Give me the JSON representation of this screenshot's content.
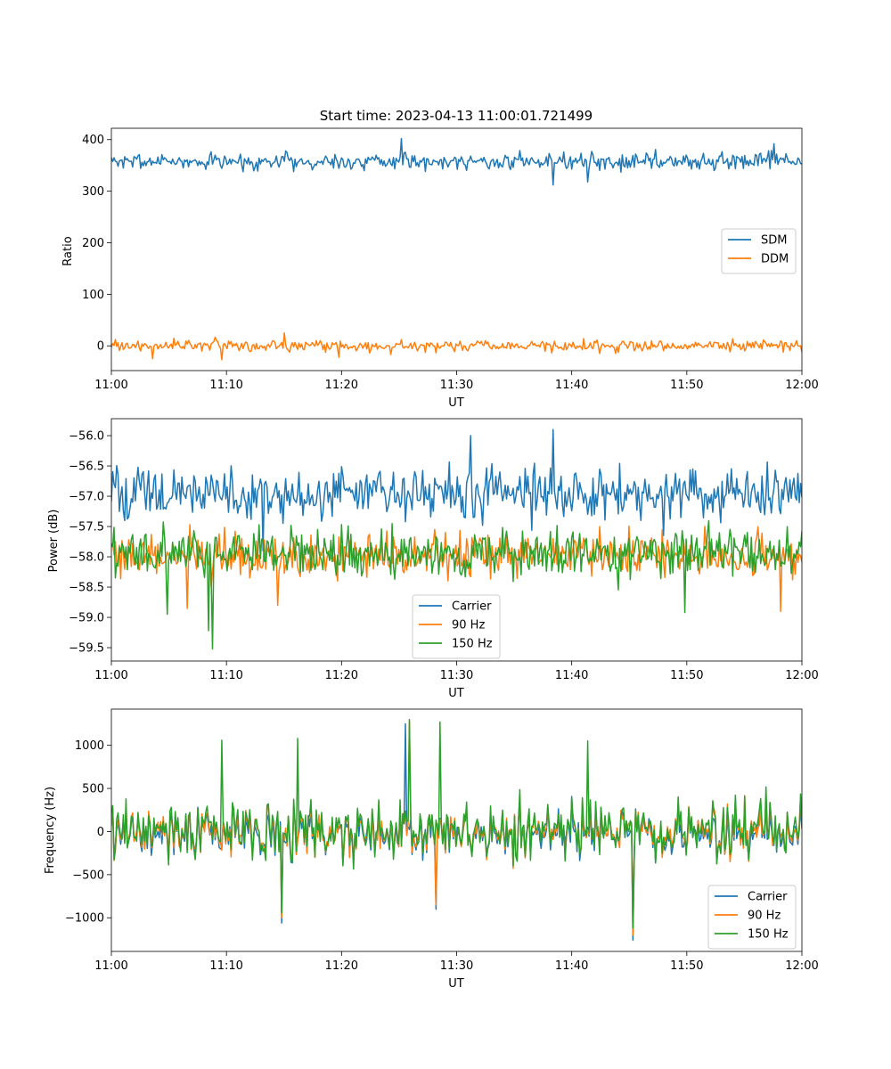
{
  "chart_data": [
    {
      "type": "line",
      "title": "Start time: 2023-04-13 11:00:01.721499",
      "xlabel": "UT",
      "ylabel": "Ratio",
      "x_ticks": [
        "11:00",
        "11:10",
        "11:20",
        "11:30",
        "11:40",
        "11:50",
        "12:00"
      ],
      "xlim": [
        "11:00",
        "12:00"
      ],
      "y_ticks": [
        0,
        100,
        200,
        300,
        400
      ],
      "ylim": [
        -48,
        422
      ],
      "legend_position": "center-right",
      "series": [
        {
          "name": "SDM",
          "color": "#1f77b4",
          "mean": 358,
          "spread": 14,
          "spikes": [
            [
              0.42,
              402
            ],
            [
              0.96,
              392
            ],
            [
              0.64,
              312
            ],
            [
              0.69,
              318
            ]
          ]
        },
        {
          "name": "DDM",
          "color": "#ff7f0e",
          "mean": 0,
          "spread": 9,
          "spikes": [
            [
              0.06,
              -25
            ],
            [
              0.16,
              -27
            ],
            [
              0.25,
              25
            ],
            [
              0.33,
              -22
            ]
          ]
        }
      ]
    },
    {
      "type": "line",
      "title": "",
      "xlabel": "UT",
      "ylabel": "Power (dB)",
      "x_ticks": [
        "11:00",
        "11:10",
        "11:20",
        "11:30",
        "11:40",
        "11:50",
        "12:00"
      ],
      "xlim": [
        "11:00",
        "12:00"
      ],
      "y_ticks": [
        -56.0,
        -56.5,
        -57.0,
        -57.5,
        -58.0,
        -58.5,
        -59.0,
        -59.5
      ],
      "ylim": [
        -59.72,
        -55.72
      ],
      "legend_position": "lower-center",
      "series": [
        {
          "name": "Carrier",
          "color": "#1f77b4",
          "mean": -56.95,
          "spread": 0.35,
          "spikes": [
            [
              0.64,
              -55.9
            ],
            [
              0.52,
              -56.0
            ],
            [
              0.22,
              -57.9
            ],
            [
              0.8,
              -57.65
            ]
          ]
        },
        {
          "name": "90 Hz",
          "color": "#ff7f0e",
          "mean": -57.98,
          "spread": 0.3,
          "spikes": [
            [
              0.11,
              -58.85
            ],
            [
              0.24,
              -58.8
            ],
            [
              0.86,
              -57.5
            ],
            [
              0.97,
              -58.9
            ]
          ]
        },
        {
          "name": "150 Hz",
          "color": "#2ca02c",
          "mean": -57.95,
          "spread": 0.33,
          "spikes": [
            [
              0.146,
              -59.52
            ],
            [
              0.14,
              -59.22
            ],
            [
              0.08,
              -58.95
            ],
            [
              0.83,
              -58.92
            ]
          ]
        }
      ]
    },
    {
      "type": "line",
      "title": "",
      "xlabel": "UT",
      "ylabel": "Frequency (Hz)",
      "x_ticks": [
        "11:00",
        "11:10",
        "11:20",
        "11:30",
        "11:40",
        "11:50",
        "12:00"
      ],
      "xlim": [
        "11:00",
        "12:00"
      ],
      "y_ticks": [
        1000,
        500,
        0,
        -500,
        -1000
      ],
      "ylim": [
        -1390,
        1420
      ],
      "legend_position": "lower-right",
      "series": [
        {
          "name": "Carrier",
          "color": "#1f77b4",
          "mean": -20,
          "spread": 280,
          "spikes": [
            [
              0.246,
              -1060
            ],
            [
              0.756,
              -1260
            ],
            [
              0.47,
              -900
            ],
            [
              0.425,
              1250
            ]
          ]
        },
        {
          "name": "90 Hz",
          "color": "#ff7f0e",
          "mean": 0,
          "spread": 280,
          "spikes": [
            [
              0.246,
              -1000
            ],
            [
              0.756,
              -1200
            ],
            [
              0.47,
              -850
            ],
            [
              0.432,
              1280
            ]
          ]
        },
        {
          "name": "150 Hz",
          "color": "#2ca02c",
          "mean": 20,
          "spread": 300,
          "spikes": [
            [
              0.432,
              1300
            ],
            [
              0.475,
              1270
            ],
            [
              0.246,
              -940
            ],
            [
              0.756,
              -1120
            ],
            [
              0.16,
              1060
            ],
            [
              0.27,
              1080
            ],
            [
              0.69,
              1050
            ]
          ]
        }
      ]
    }
  ]
}
